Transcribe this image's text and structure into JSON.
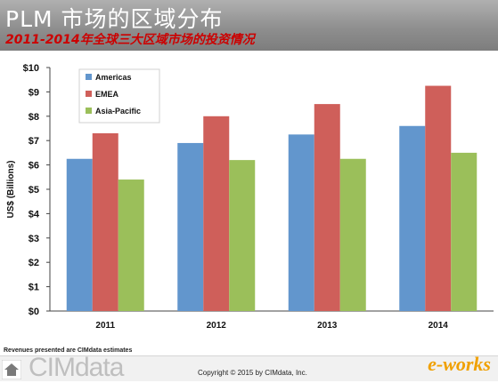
{
  "header": {
    "title": "PLM 市场的区域分布",
    "subtitle": "2011-2014年全球三大区域市场的投资情况"
  },
  "chart_data": {
    "type": "bar",
    "categories": [
      "2011",
      "2012",
      "2013",
      "2014"
    ],
    "series": [
      {
        "name": "Americas",
        "color": "#6296cd",
        "values": [
          6.25,
          6.9,
          7.25,
          7.6
        ]
      },
      {
        "name": "EMEA",
        "color": "#cf5f5a",
        "values": [
          7.3,
          8.0,
          8.5,
          9.25
        ]
      },
      {
        "name": "Asia-Pacific",
        "color": "#9bbf5a",
        "values": [
          5.4,
          6.2,
          6.25,
          6.5
        ]
      }
    ],
    "ylabel": "US$ (Billions)",
    "ylim": [
      0,
      10
    ],
    "yticks": [
      "$0",
      "$1",
      "$2",
      "$3",
      "$4",
      "$5",
      "$6",
      "$7",
      "$8",
      "$9",
      "$10"
    ],
    "legend_position": "top-left",
    "grid": false
  },
  "footer": {
    "footnote": "Revenues presented are CIMdata estimates",
    "logo_left": "CIMdata",
    "copyright": "Copyright © 2015 by CIMdata, Inc.",
    "logo_right": "e-works"
  }
}
